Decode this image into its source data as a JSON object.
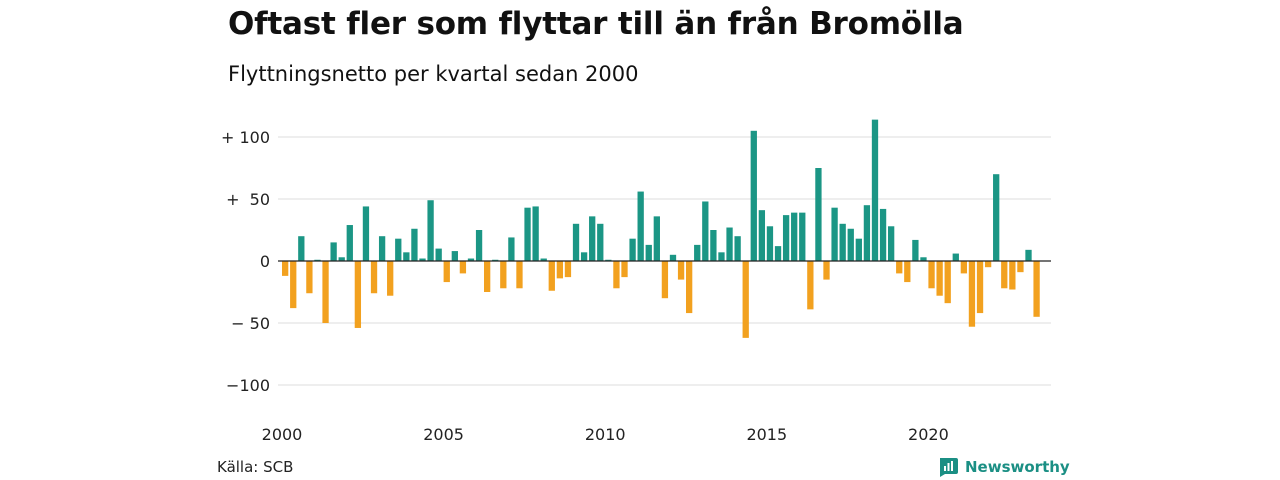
{
  "title": "Oftast fler som flyttar till än från Bromölla",
  "subtitle": "Flyttningsnetto per kvartal sedan 2000",
  "source": "Källa: SCB",
  "brand": {
    "name": "Newsworthy",
    "icon": "newsworthy-logo-icon"
  },
  "colors": {
    "positive": "#1b9685",
    "negative": "#f2a11f",
    "grid": "#dddddd",
    "zero_line": "#222222"
  },
  "chart_data": {
    "type": "bar",
    "x_start": "2000 Q1",
    "x_ticks": [
      "2000",
      "2005",
      "2010",
      "2015",
      "2020"
    ],
    "y_ticks": [
      {
        "value": 100,
        "label": "+ 100"
      },
      {
        "value": 50,
        "label": "+  50"
      },
      {
        "value": 0,
        "label": "0"
      },
      {
        "value": -50,
        "label": "− 50"
      },
      {
        "value": -100,
        "label": "−100"
      }
    ],
    "ylim": [
      -105,
      115
    ],
    "grid": true,
    "values": [
      -12,
      -38,
      20,
      -26,
      1,
      -50,
      15,
      3,
      29,
      -54,
      44,
      -26,
      20,
      -28,
      18,
      7,
      26,
      2,
      49,
      10,
      -17,
      8,
      -10,
      2,
      25,
      -25,
      1,
      -22,
      19,
      -22,
      43,
      44,
      2,
      -24,
      -14,
      -13,
      30,
      7,
      36,
      30,
      1,
      -22,
      -13,
      18,
      56,
      13,
      36,
      -30,
      5,
      -15,
      -42,
      13,
      48,
      25,
      7,
      27,
      20,
      -62,
      105,
      41,
      28,
      12,
      37,
      39,
      39,
      -39,
      75,
      -15,
      43,
      30,
      26,
      18,
      45,
      114,
      42,
      28,
      -10,
      -17,
      17,
      3,
      -22,
      -28,
      -34,
      6,
      -10,
      -53,
      -42,
      -5,
      70,
      -22,
      -23,
      -9,
      9,
      -45
    ]
  }
}
